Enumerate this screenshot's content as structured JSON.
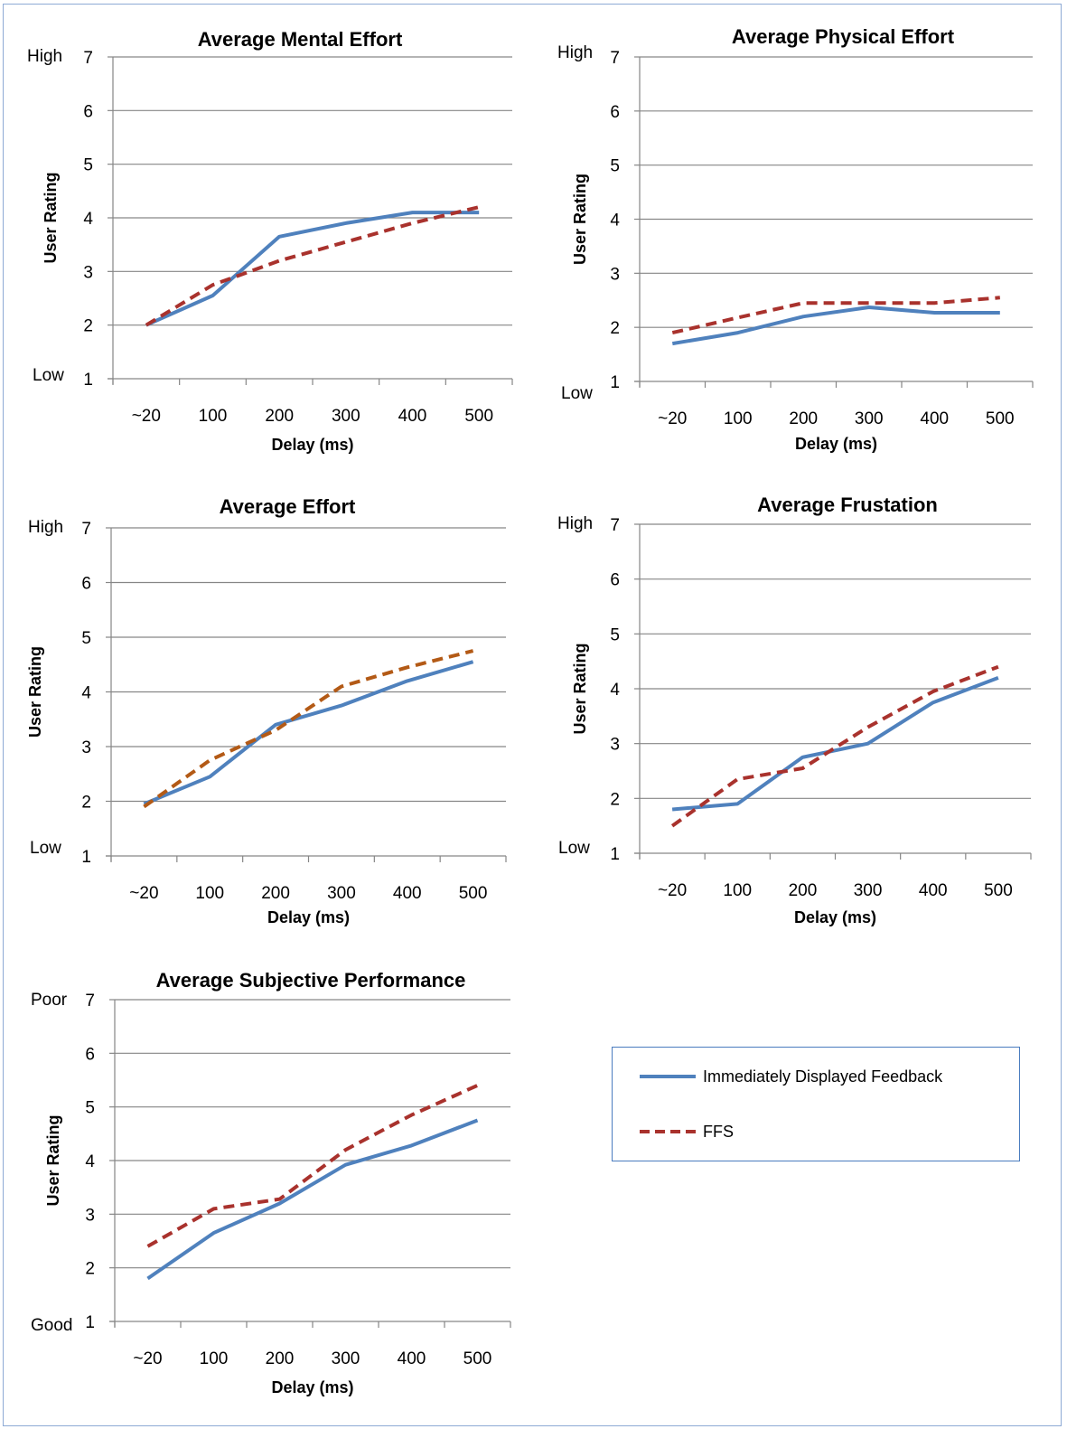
{
  "colors": {
    "immediate": "#4f81bd",
    "ffs": "#a9322d",
    "ffs_effort": "#b35a16",
    "grid": "#868686",
    "frame": "#8eaad5"
  },
  "legend": {
    "immediate_label": "Immediately Displayed Feedback",
    "ffs_label": "FFS"
  },
  "chart_data": [
    {
      "type": "line",
      "title": "Average Mental Effort",
      "xlabel": "Delay (ms)",
      "ylabel": "User Rating",
      "categories": [
        "~20",
        "100",
        "200",
        "300",
        "400",
        "500"
      ],
      "ylim": [
        1,
        7
      ],
      "yticks": [
        "1",
        "2",
        "3",
        "4",
        "5",
        "6",
        "7"
      ],
      "scale_low": "Low",
      "scale_high": "High",
      "series": [
        {
          "name": "Immediately Displayed Feedback",
          "values": [
            2.0,
            2.55,
            3.65,
            3.9,
            4.1,
            4.1
          ]
        },
        {
          "name": "FFS",
          "values": [
            2.0,
            2.75,
            3.2,
            3.55,
            3.9,
            4.2
          ]
        }
      ]
    },
    {
      "type": "line",
      "title": "Average Physical Effort",
      "xlabel": "Delay (ms)",
      "ylabel": "User Rating",
      "categories": [
        "~20",
        "100",
        "200",
        "300",
        "400",
        "500"
      ],
      "ylim": [
        1,
        7
      ],
      "yticks": [
        "1",
        "2",
        "3",
        "4",
        "5",
        "6",
        "7"
      ],
      "scale_low": "Low",
      "scale_high": "High",
      "series": [
        {
          "name": "Immediately Displayed Feedback",
          "values": [
            1.7,
            1.9,
            2.2,
            2.37,
            2.27,
            2.27
          ]
        },
        {
          "name": "FFS",
          "values": [
            1.9,
            2.18,
            2.45,
            2.45,
            2.45,
            2.55
          ]
        }
      ]
    },
    {
      "type": "line",
      "title": "Average Effort",
      "xlabel": "Delay (ms)",
      "ylabel": "User Rating",
      "categories": [
        "~20",
        "100",
        "200",
        "300",
        "400",
        "500"
      ],
      "ylim": [
        1,
        7
      ],
      "yticks": [
        "1",
        "2",
        "3",
        "4",
        "5",
        "6",
        "7"
      ],
      "scale_low": "Low",
      "scale_high": "High",
      "series": [
        {
          "name": "Immediately Displayed Feedback",
          "values": [
            1.95,
            2.45,
            3.4,
            3.75,
            4.2,
            4.55
          ]
        },
        {
          "name": "FFS",
          "values": [
            1.9,
            2.75,
            3.3,
            4.1,
            4.45,
            4.75
          ]
        }
      ]
    },
    {
      "type": "line",
      "title": "Average Frustation",
      "xlabel": "Delay (ms)",
      "ylabel": "User Rating",
      "categories": [
        "~20",
        "100",
        "200",
        "300",
        "400",
        "500"
      ],
      "ylim": [
        1,
        7
      ],
      "yticks": [
        "1",
        "2",
        "3",
        "4",
        "5",
        "6",
        "7"
      ],
      "scale_low": "Low",
      "scale_high": "High",
      "series": [
        {
          "name": "Immediately Displayed Feedback",
          "values": [
            1.8,
            1.9,
            2.75,
            3.0,
            3.75,
            4.2
          ]
        },
        {
          "name": "FFS",
          "values": [
            1.5,
            2.35,
            2.55,
            3.3,
            3.95,
            4.4
          ]
        }
      ]
    },
    {
      "type": "line",
      "title": "Average Subjective Performance",
      "xlabel": "Delay (ms)",
      "ylabel": "User Rating",
      "categories": [
        "~20",
        "100",
        "200",
        "300",
        "400",
        "500"
      ],
      "ylim": [
        1,
        7
      ],
      "yticks": [
        "1",
        "2",
        "3",
        "4",
        "5",
        "6",
        "7"
      ],
      "scale_low": "Good",
      "scale_high": "Poor",
      "series": [
        {
          "name": "Immediately Displayed Feedback",
          "values": [
            1.8,
            2.65,
            3.2,
            3.92,
            4.28,
            4.75
          ]
        },
        {
          "name": "FFS",
          "values": [
            2.4,
            3.1,
            3.28,
            4.2,
            4.85,
            5.4
          ]
        }
      ]
    }
  ]
}
